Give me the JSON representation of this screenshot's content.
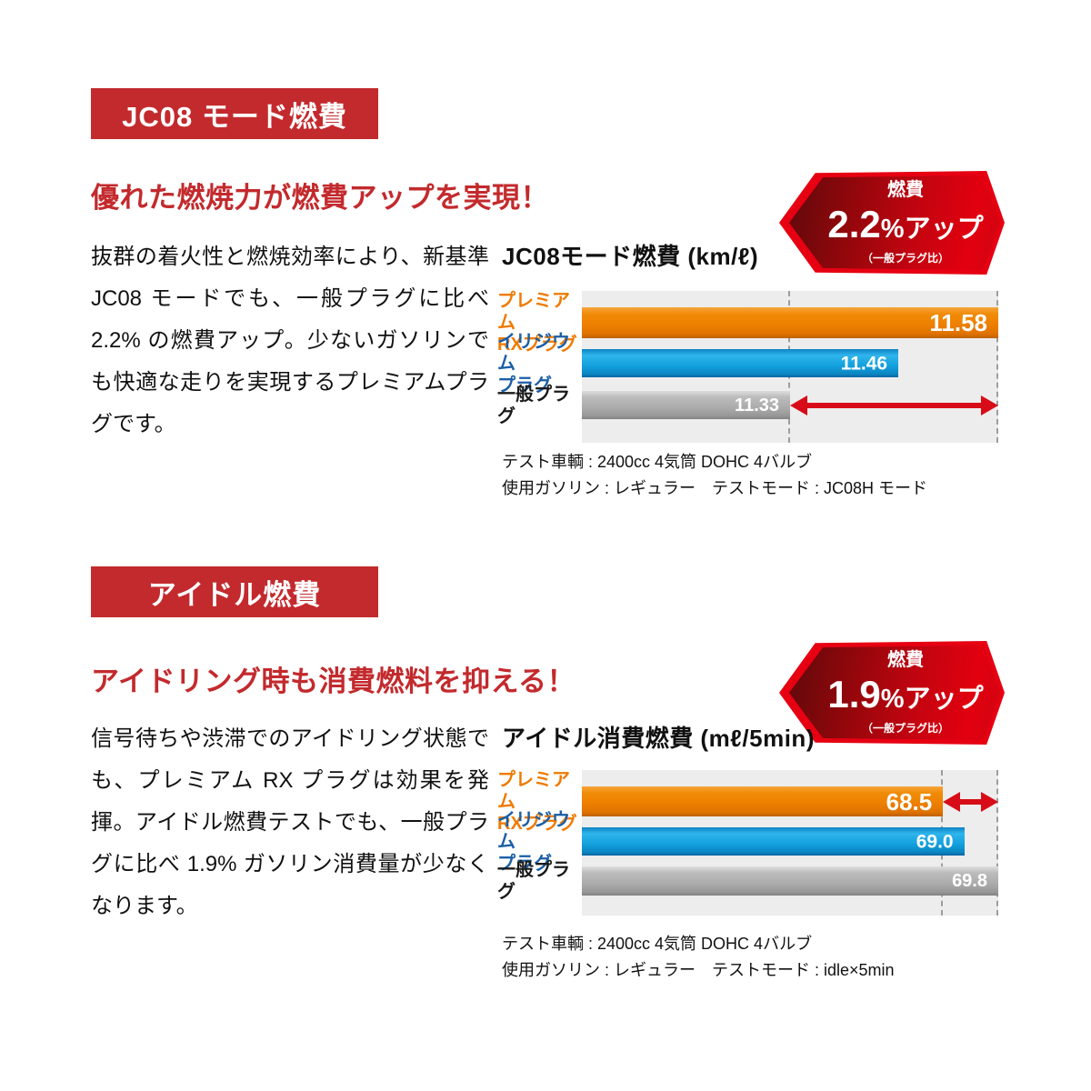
{
  "colors": {
    "badge_red": "#c32a2d",
    "heading_red": "#c32a2d",
    "callout_border_red": "#e60012",
    "callout_fill_dark_red": "#8f070b",
    "arrow_red": "#d80c18",
    "plot_background": "#ededed",
    "orange_bar": "#ef8200",
    "blue_bar": "#12a0dd",
    "gray_bar": "#ababab",
    "orange_label": "#ef7a00",
    "blue_label": "#1b5fa6",
    "black_label": "#1a1a1a"
  },
  "sections": [
    {
      "badge": "JC08 モード燃費",
      "heading": "優れた燃焼力が燃費アップを実現！",
      "body": "抜群の着火性と燃焼効率により、新基準 JC08 モードでも、一般プラグに比べ 2.2% の燃費アップ。少ないガソリンでも快適な走りを実現するプレミアムプラグです。",
      "callout": {
        "label": "燃費",
        "value": "2.2",
        "unit": "%アップ",
        "note": "（一般プラグ比）"
      },
      "notes": [
        "テスト車輌 : 2400cc 4気筒 DOHC 4バルブ",
        "使用ガソリン : レギュラー　テストモード : JC08H モード"
      ]
    },
    {
      "badge": "アイドル燃費",
      "heading": "アイドリング時も消費燃料を抑える！",
      "body": "信号待ちや渋滞でのアイドリング状態でも、プレミアム RX プラグは効果を発揮。アイドル燃費テストでも、一般プラグに比べ 1.9% ガソリン消費量が少なくなります。",
      "callout": {
        "label": "燃費",
        "value": "1.9",
        "unit": "%アップ",
        "note": "（一般プラグ比）"
      },
      "notes": [
        "テスト車輌 : 2400cc 4気筒 DOHC 4バルブ",
        "使用ガソリン : レギュラー　テストモード : idle×5min"
      ]
    }
  ],
  "chart_data": [
    {
      "type": "bar",
      "orientation": "horizontal",
      "title": "JC08モード燃費 (km/ℓ)",
      "unit": "km/ℓ",
      "categories": [
        "プレミアム\nRXプラグ",
        "イリジウム\nプラグ",
        "一般プラグ"
      ],
      "values": [
        11.58,
        11.46,
        11.33
      ],
      "value_labels": [
        "11.58",
        "11.46",
        "11.33"
      ],
      "bar_palettes": [
        "orange",
        "blue",
        "gray"
      ],
      "label_colors": [
        "#ef7a00",
        "#1b5fa6",
        "#1a1a1a"
      ],
      "xlim": [
        11.08,
        11.58
      ],
      "guides": [
        11.33,
        11.58
      ],
      "arrow": {
        "row_index": 2,
        "from": 11.33,
        "to": 11.58
      },
      "grid": false,
      "legend": "none"
    },
    {
      "type": "bar",
      "orientation": "horizontal",
      "title": "アイドル消費燃費 (mℓ/5min)",
      "unit": "mℓ/5min",
      "categories": [
        "プレミアム\nRXプラグ",
        "イリジウム\nプラグ",
        "一般プラグ"
      ],
      "values": [
        68.5,
        69.0,
        69.8
      ],
      "value_labels": [
        "68.5",
        "69.0",
        "69.8"
      ],
      "bar_palettes": [
        "orange",
        "blue",
        "gray"
      ],
      "label_colors": [
        "#ef7a00",
        "#1b5fa6",
        "#1a1a1a"
      ],
      "xlim": [
        60.0,
        69.8
      ],
      "guides": [
        68.5,
        69.8
      ],
      "arrow": {
        "row_index": 0,
        "from": 68.5,
        "to": 69.8
      },
      "grid": false,
      "legend": "none"
    }
  ]
}
